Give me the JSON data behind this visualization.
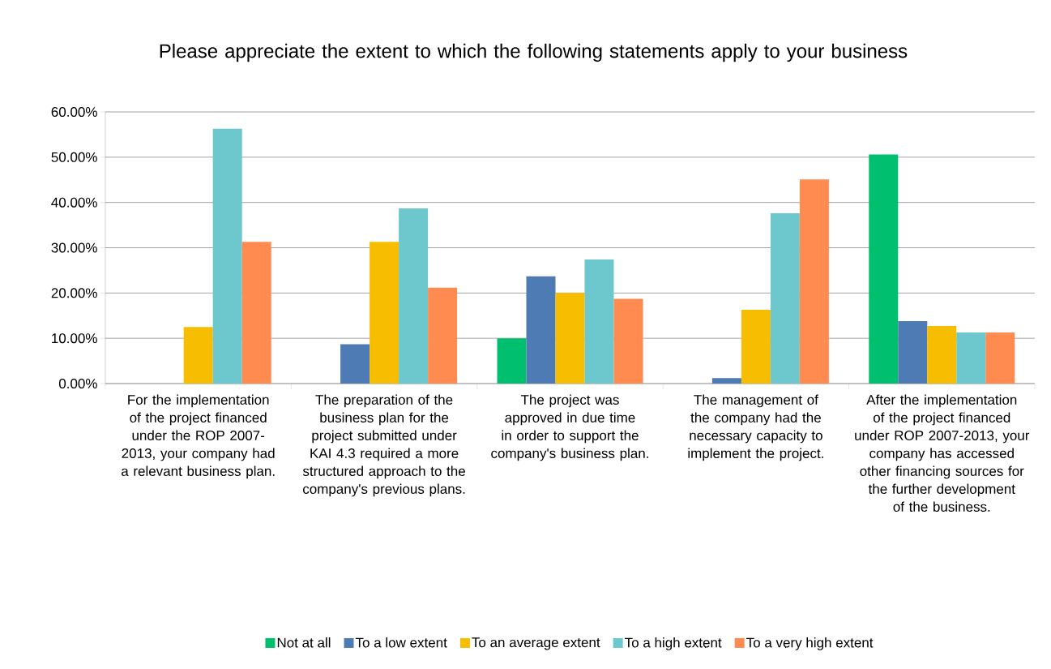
{
  "chart_data": {
    "type": "bar",
    "title": "Please appreciate the extent to which the following statements apply to your business",
    "categories": [
      "For the implementation of the project financed under the ROP 2007-2013, your company had a relevant business plan.",
      "The preparation of the business plan for the project submitted under KAI 4.3 required a more structured approach to the company's previous plans.",
      "The project was approved in due time in order to support the company's business plan.",
      "The management of the company had the necessary capacity to implement the project.",
      "After the implementation of the project financed under ROP 2007-2013, your company has accessed other financing sources for the further development of the business."
    ],
    "series": [
      {
        "name": "Not at all",
        "color": "#00bf6f",
        "values": [
          0,
          0,
          10.0,
          0,
          50.6
        ]
      },
      {
        "name": "To a low extent",
        "color": "#4f7bb4",
        "values": [
          0,
          8.7,
          23.7,
          1.2,
          13.8
        ]
      },
      {
        "name": "To an average extent",
        "color": "#f7bd00",
        "values": [
          12.5,
          31.3,
          20.0,
          16.3,
          12.7
        ]
      },
      {
        "name": "To a high extent",
        "color": "#6cc8cc",
        "values": [
          56.3,
          38.7,
          27.4,
          37.6,
          11.3
        ]
      },
      {
        "name": "To a very high extent",
        "color": "#ff8b50",
        "values": [
          31.3,
          21.2,
          18.7,
          45.1,
          11.3
        ]
      }
    ],
    "ylim": [
      0,
      60
    ],
    "yticks": [
      {
        "value": 0,
        "label": "0.00%"
      },
      {
        "value": 10,
        "label": "10.00%"
      },
      {
        "value": 20,
        "label": "20.00%"
      },
      {
        "value": 30,
        "label": "30.00%"
      },
      {
        "value": 40,
        "label": "40.00%"
      },
      {
        "value": 50,
        "label": "50.00%"
      },
      {
        "value": 60,
        "label": "60.00%"
      }
    ],
    "grid": "y",
    "legend": "bottom"
  }
}
